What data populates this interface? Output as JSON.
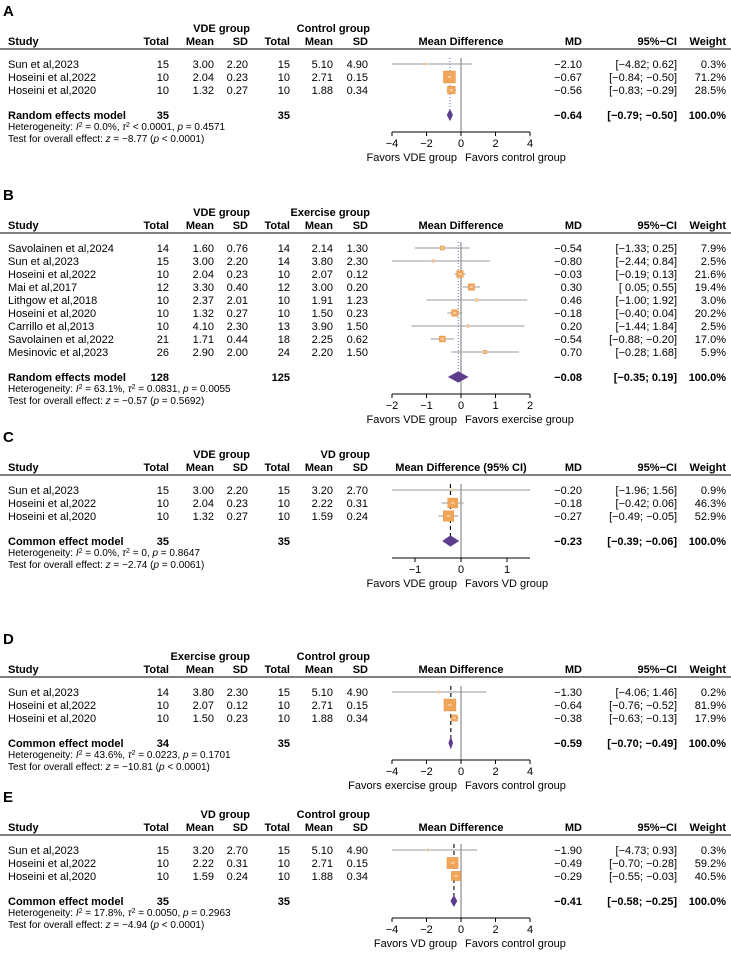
{
  "colors": {
    "square": "#F2A65A",
    "square_stroke": "#E08A35",
    "diamond": "#5E3C8C",
    "ci_line": "#9a9a9a",
    "ref_line": "#000000"
  },
  "chart_data": [
    {
      "type": "forest",
      "panel_label": "A",
      "group1_title": "VDE group",
      "group2_title": "Control group",
      "plot_title": "Mean Difference",
      "headers": {
        "study": "Study",
        "total1": "Total",
        "mean1": "Mean",
        "sd1": "SD",
        "total2": "Total",
        "mean2": "Mean",
        "sd2": "SD",
        "md": "MD",
        "ci": "95%−CI",
        "weight": "Weight"
      },
      "studies": [
        {
          "name": "Sun et al,2023",
          "total1": "15",
          "mean1": "3.00",
          "sd1": "2.20",
          "total2": "15",
          "mean2": "5.10",
          "sd2": "4.90",
          "md_text": "−2.10",
          "ci_text": "[−4.82;  0.62]",
          "weight_text": "0.3%",
          "md": -2.1,
          "lo": -4.82,
          "hi": 0.62,
          "weight": 0.3
        },
        {
          "name": "Hoseini et al,2022",
          "total1": "10",
          "mean1": "2.04",
          "sd1": "0.23",
          "total2": "10",
          "mean2": "2.71",
          "sd2": "0.15",
          "md_text": "−0.67",
          "ci_text": "[−0.84; −0.50]",
          "weight_text": "71.2%",
          "md": -0.67,
          "lo": -0.84,
          "hi": -0.5,
          "weight": 71.2
        },
        {
          "name": "Hoseini et al,2020",
          "total1": "10",
          "mean1": "1.32",
          "sd1": "0.27",
          "total2": "10",
          "mean2": "1.88",
          "sd2": "0.34",
          "md_text": "−0.56",
          "ci_text": "[−0.83; −0.29]",
          "weight_text": "28.5%",
          "md": -0.56,
          "lo": -0.83,
          "hi": -0.29,
          "weight": 28.5
        }
      ],
      "pooled": {
        "label": "Random effects model",
        "total1": "35",
        "total2": "35",
        "md_text": "−0.64",
        "ci_text": "[−0.79; −0.50]",
        "weight_text": "100.0%",
        "md": -0.64,
        "lo": -0.79,
        "hi": -0.5
      },
      "heterogeneity": {
        "prefix": "Heterogeneity: ",
        "i2_sym": "I",
        "i2_exp": "2",
        "i2_val": " = 0.0%, ",
        "tau_sym": "τ",
        "tau_exp": "2",
        "tau_val": " < 0.0001, ",
        "p_sym": "p",
        "p_val": " = 0.4571"
      },
      "overall": {
        "prefix": "Test for overall effect: ",
        "z_sym": "z",
        "z_val": " = −8.77 (",
        "p_sym": "p",
        "p_val": " < 0.0001)"
      },
      "xlim": [
        -4,
        4
      ],
      "ticks": [
        -4,
        -2,
        0,
        2,
        4
      ],
      "tick_labels": [
        "−4",
        "−2",
        "0",
        "2",
        "4"
      ],
      "favors_left": "Favors VDE group",
      "favors_right": "Favors control group",
      "ref_dashed": false
    },
    {
      "type": "forest",
      "panel_label": "B",
      "group1_title": "VDE group",
      "group2_title": "Exercise group",
      "plot_title": "Mean Difference",
      "headers": {
        "study": "Study",
        "total1": "Total",
        "mean1": "Mean",
        "sd1": "SD",
        "total2": "Total",
        "mean2": "Mean",
        "sd2": "SD",
        "md": "MD",
        "ci": "95%−CI",
        "weight": "Weight"
      },
      "studies": [
        {
          "name": "Savolainen et al,2024",
          "total1": "14",
          "mean1": "1.60",
          "sd1": "0.76",
          "total2": "14",
          "mean2": "2.14",
          "sd2": "1.30",
          "md_text": "−0.54",
          "ci_text": "[−1.33;  0.25]",
          "weight_text": "7.9%",
          "md": -0.54,
          "lo": -1.33,
          "hi": 0.25,
          "weight": 7.9
        },
        {
          "name": "Sun et al,2023",
          "total1": "15",
          "mean1": "3.00",
          "sd1": "2.20",
          "total2": "14",
          "mean2": "3.80",
          "sd2": "2.30",
          "md_text": "−0.80",
          "ci_text": "[−2.44;  0.84]",
          "weight_text": "2.5%",
          "md": -0.8,
          "lo": -2.44,
          "hi": 0.84,
          "weight": 2.5
        },
        {
          "name": "Hoseini et al,2022",
          "total1": "10",
          "mean1": "2.04",
          "sd1": "0.23",
          "total2": "10",
          "mean2": "2.07",
          "sd2": "0.12",
          "md_text": "−0.03",
          "ci_text": "[−0.19;  0.13]",
          "weight_text": "21.6%",
          "md": -0.03,
          "lo": -0.19,
          "hi": 0.13,
          "weight": 21.6
        },
        {
          "name": "Mai et al,2017",
          "total1": "12",
          "mean1": "3.30",
          "sd1": "0.40",
          "total2": "12",
          "mean2": "3.00",
          "sd2": "0.20",
          "md_text": "0.30",
          "ci_text": "[ 0.05;  0.55]",
          "weight_text": "19.4%",
          "md": 0.3,
          "lo": 0.05,
          "hi": 0.55,
          "weight": 19.4
        },
        {
          "name": "Lithgow et al,2018",
          "total1": "10",
          "mean1": "2.37",
          "sd1": "2.01",
          "total2": "10",
          "mean2": "1.91",
          "sd2": "1.23",
          "md_text": "0.46",
          "ci_text": "[−1.00;  1.92]",
          "weight_text": "3.0%",
          "md": 0.46,
          "lo": -1.0,
          "hi": 1.92,
          "weight": 3.0
        },
        {
          "name": "Hoseini et al,2020",
          "total1": "10",
          "mean1": "1.32",
          "sd1": "0.27",
          "total2": "10",
          "mean2": "1.50",
          "sd2": "0.23",
          "md_text": "−0.18",
          "ci_text": "[−0.40;  0.04]",
          "weight_text": "20.2%",
          "md": -0.18,
          "lo": -0.4,
          "hi": 0.04,
          "weight": 20.2
        },
        {
          "name": "Carrillo et al,2013",
          "total1": "10",
          "mean1": "4.10",
          "sd1": "2.30",
          "total2": "13",
          "mean2": "3.90",
          "sd2": "1.50",
          "md_text": "0.20",
          "ci_text": "[−1.44;  1.84]",
          "weight_text": "2.5%",
          "md": 0.2,
          "lo": -1.44,
          "hi": 1.84,
          "weight": 2.5
        },
        {
          "name": "Savolainen et al,2022",
          "total1": "21",
          "mean1": "1.71",
          "sd1": "0.44",
          "total2": "18",
          "mean2": "2.25",
          "sd2": "0.62",
          "md_text": "−0.54",
          "ci_text": "[−0.88; −0.20]",
          "weight_text": "17.0%",
          "md": -0.54,
          "lo": -0.88,
          "hi": -0.2,
          "weight": 17.0
        },
        {
          "name": "Mesinovic et al,2023",
          "total1": "26",
          "mean1": "2.90",
          "sd1": "2.00",
          "total2": "24",
          "mean2": "2.20",
          "sd2": "1.50",
          "md_text": "0.70",
          "ci_text": "[−0.28;  1.68]",
          "weight_text": "5.9%",
          "md": 0.7,
          "lo": -0.28,
          "hi": 1.68,
          "weight": 5.9
        }
      ],
      "pooled": {
        "label": "Random effects model",
        "total1": "128",
        "total2": "125",
        "md_text": "−0.08",
        "ci_text": "[−0.35;  0.19]",
        "weight_text": "100.0%",
        "md": -0.08,
        "lo": -0.35,
        "hi": 0.19
      },
      "heterogeneity": {
        "prefix": "Heterogeneity: ",
        "i2_sym": "I",
        "i2_exp": "2",
        "i2_val": " = 63.1%, ",
        "tau_sym": "τ",
        "tau_exp": "2",
        "tau_val": " = 0.0831, ",
        "p_sym": "p",
        "p_val": " = 0.0055"
      },
      "overall": {
        "prefix": "Test for overall effect: ",
        "z_sym": "z",
        "z_val": " = −0.57 (",
        "p_sym": "p",
        "p_val": " = 0.5692)"
      },
      "xlim": [
        -2,
        2
      ],
      "ticks": [
        -2,
        -1,
        0,
        1,
        2
      ],
      "tick_labels": [
        "−2",
        "−1",
        "0",
        "1",
        "2"
      ],
      "favors_left": "Favors VDE group",
      "favors_right": "Favors exercise group",
      "ref_dashed": false
    },
    {
      "type": "forest",
      "panel_label": "C",
      "group1_title": "VDE group",
      "group2_title": "VD group",
      "plot_title": "Mean Difference (95% CI)",
      "headers": {
        "study": "Study",
        "total1": "Total",
        "mean1": "Mean",
        "sd1": "SD",
        "total2": "Total",
        "mean2": "Mean",
        "sd2": "SD",
        "md": "MD",
        "ci": "95%−CI",
        "weight": "Weight"
      },
      "studies": [
        {
          "name": "Sun et al,2023",
          "total1": "15",
          "mean1": "3.00",
          "sd1": "2.20",
          "total2": "15",
          "mean2": "3.20",
          "sd2": "2.70",
          "md_text": "−0.20",
          "ci_text": "[−1.96;  1.56]",
          "weight_text": "0.9%",
          "md": -0.2,
          "lo": -1.96,
          "hi": 1.56,
          "weight": 0.9
        },
        {
          "name": "Hoseini et al,2022",
          "total1": "10",
          "mean1": "2.04",
          "sd1": "0.23",
          "total2": "10",
          "mean2": "2.22",
          "sd2": "0.31",
          "md_text": "−0.18",
          "ci_text": "[−0.42;  0.06]",
          "weight_text": "46.3%",
          "md": -0.18,
          "lo": -0.42,
          "hi": 0.06,
          "weight": 46.3
        },
        {
          "name": "Hoseini et al,2020",
          "total1": "10",
          "mean1": "1.32",
          "sd1": "0.27",
          "total2": "10",
          "mean2": "1.59",
          "sd2": "0.24",
          "md_text": "−0.27",
          "ci_text": "[−0.49; −0.05]",
          "weight_text": "52.9%",
          "md": -0.27,
          "lo": -0.49,
          "hi": -0.05,
          "weight": 52.9
        }
      ],
      "pooled": {
        "label": "Common effect model",
        "total1": "35",
        "total2": "35",
        "md_text": "−0.23",
        "ci_text": "[−0.39; −0.06]",
        "weight_text": "100.0%",
        "md": -0.23,
        "lo": -0.39,
        "hi": -0.06
      },
      "heterogeneity": {
        "prefix": "Heterogeneity: ",
        "i2_sym": "I",
        "i2_exp": "2",
        "i2_val": " = 0.0%, ",
        "tau_sym": "τ",
        "tau_exp": "2",
        "tau_val": " = 0, ",
        "p_sym": "p",
        "p_val": " = 0.8647"
      },
      "overall": {
        "prefix": "Test for overall effect: ",
        "z_sym": "z",
        "z_val": " = −2.74 (",
        "p_sym": "p",
        "p_val": " = 0.0061)"
      },
      "xlim": [
        -1.5,
        1.5
      ],
      "ticks": [
        -1,
        0,
        1
      ],
      "tick_labels": [
        "−1",
        "0",
        "1"
      ],
      "favors_left": "Favors VDE group",
      "favors_right": "Favors VD group",
      "ref_dashed": true
    },
    {
      "type": "forest",
      "panel_label": "D",
      "group1_title": "Exercise group",
      "group2_title": "Control group",
      "plot_title": "Mean Difference",
      "headers": {
        "study": "Study",
        "total1": "Total",
        "mean1": "Mean",
        "sd1": "SD",
        "total2": "Total",
        "mean2": "Mean",
        "sd2": "SD",
        "md": "MD",
        "ci": "95%−CI",
        "weight": "Weight"
      },
      "studies": [
        {
          "name": "Sun et al,2023",
          "total1": "14",
          "mean1": "3.80",
          "sd1": "2.30",
          "total2": "15",
          "mean2": "5.10",
          "sd2": "4.90",
          "md_text": "−1.30",
          "ci_text": "[−4.06;  1.46]",
          "weight_text": "0.2%",
          "md": -1.3,
          "lo": -4.06,
          "hi": 1.46,
          "weight": 0.2
        },
        {
          "name": "Hoseini et al,2022",
          "total1": "10",
          "mean1": "2.07",
          "sd1": "0.12",
          "total2": "10",
          "mean2": "2.71",
          "sd2": "0.15",
          "md_text": "−0.64",
          "ci_text": "[−0.76; −0.52]",
          "weight_text": "81.9%",
          "md": -0.64,
          "lo": -0.76,
          "hi": -0.52,
          "weight": 81.9
        },
        {
          "name": "Hoseini et al,2020",
          "total1": "10",
          "mean1": "1.50",
          "sd1": "0.23",
          "total2": "10",
          "mean2": "1.88",
          "sd2": "0.34",
          "md_text": "−0.38",
          "ci_text": "[−0.63; −0.13]",
          "weight_text": "17.9%",
          "md": -0.38,
          "lo": -0.63,
          "hi": -0.13,
          "weight": 17.9
        }
      ],
      "pooled": {
        "label": "Common effect model",
        "total1": "34",
        "total2": "35",
        "md_text": "−0.59",
        "ci_text": "[−0.70; −0.49]",
        "weight_text": "100.0%",
        "md": -0.59,
        "lo": -0.7,
        "hi": -0.49
      },
      "heterogeneity": {
        "prefix": "Heterogeneity: ",
        "i2_sym": "I",
        "i2_exp": "2",
        "i2_val": " = 43.6%, ",
        "tau_sym": "τ",
        "tau_exp": "2",
        "tau_val": " = 0.0223, ",
        "p_sym": "p",
        "p_val": " = 0.1701"
      },
      "overall": {
        "prefix": "Test for overall effect: ",
        "z_sym": "z",
        "z_val": " = −10.81 (",
        "p_sym": "p",
        "p_val": " < 0.0001)"
      },
      "xlim": [
        -4,
        4
      ],
      "ticks": [
        -4,
        -2,
        0,
        2,
        4
      ],
      "tick_labels": [
        "−4",
        "−2",
        "0",
        "2",
        "4"
      ],
      "favors_left": "Favors exercise group",
      "favors_right": "Favors control group",
      "ref_dashed": true
    },
    {
      "type": "forest",
      "panel_label": "E",
      "group1_title": "VD group",
      "group2_title": "Control group",
      "plot_title": "Mean Difference",
      "headers": {
        "study": "Study",
        "total1": "Total",
        "mean1": "Mean",
        "sd1": "SD",
        "total2": "Total",
        "mean2": "Mean",
        "sd2": "SD",
        "md": "MD",
        "ci": "95%−CI",
        "weight": "Weight"
      },
      "studies": [
        {
          "name": "Sun et al,2023",
          "total1": "15",
          "mean1": "3.20",
          "sd1": "2.70",
          "total2": "15",
          "mean2": "5.10",
          "sd2": "4.90",
          "md_text": "−1.90",
          "ci_text": "[−4.73;  0.93]",
          "weight_text": "0.3%",
          "md": -1.9,
          "lo": -4.73,
          "hi": 0.93,
          "weight": 0.3
        },
        {
          "name": "Hoseini et al,2022",
          "total1": "10",
          "mean1": "2.22",
          "sd1": "0.31",
          "total2": "10",
          "mean2": "2.71",
          "sd2": "0.15",
          "md_text": "−0.49",
          "ci_text": "[−0.70; −0.28]",
          "weight_text": "59.2%",
          "md": -0.49,
          "lo": -0.7,
          "hi": -0.28,
          "weight": 59.2
        },
        {
          "name": "Hoseini et al,2020",
          "total1": "10",
          "mean1": "1.59",
          "sd1": "0.24",
          "total2": "10",
          "mean2": "1.88",
          "sd2": "0.34",
          "md_text": "−0.29",
          "ci_text": "[−0.55; −0.03]",
          "weight_text": "40.5%",
          "md": -0.29,
          "lo": -0.55,
          "hi": -0.03,
          "weight": 40.5
        }
      ],
      "pooled": {
        "label": "Common effect model",
        "total1": "35",
        "total2": "35",
        "md_text": "−0.41",
        "ci_text": "[−0.58; −0.25]",
        "weight_text": "100.0%",
        "md": -0.41,
        "lo": -0.58,
        "hi": -0.25
      },
      "heterogeneity": {
        "prefix": "Heterogeneity: ",
        "i2_sym": "I",
        "i2_exp": "2",
        "i2_val": " = 17.8%, ",
        "tau_sym": "τ",
        "tau_exp": "2",
        "tau_val": " = 0.0050, ",
        "p_sym": "p",
        "p_val": " = 0.2963"
      },
      "overall": {
        "prefix": "Test for overall effect: ",
        "z_sym": "z",
        "z_val": " = −4.94 (",
        "p_sym": "p",
        "p_val": " < 0.0001)"
      },
      "xlim": [
        -4,
        4
      ],
      "ticks": [
        -4,
        -2,
        0,
        2,
        4
      ],
      "tick_labels": [
        "−4",
        "−2",
        "0",
        "2",
        "4"
      ],
      "favors_left": "Favors VD group",
      "favors_right": "Favors control group",
      "ref_dashed": true
    }
  ]
}
